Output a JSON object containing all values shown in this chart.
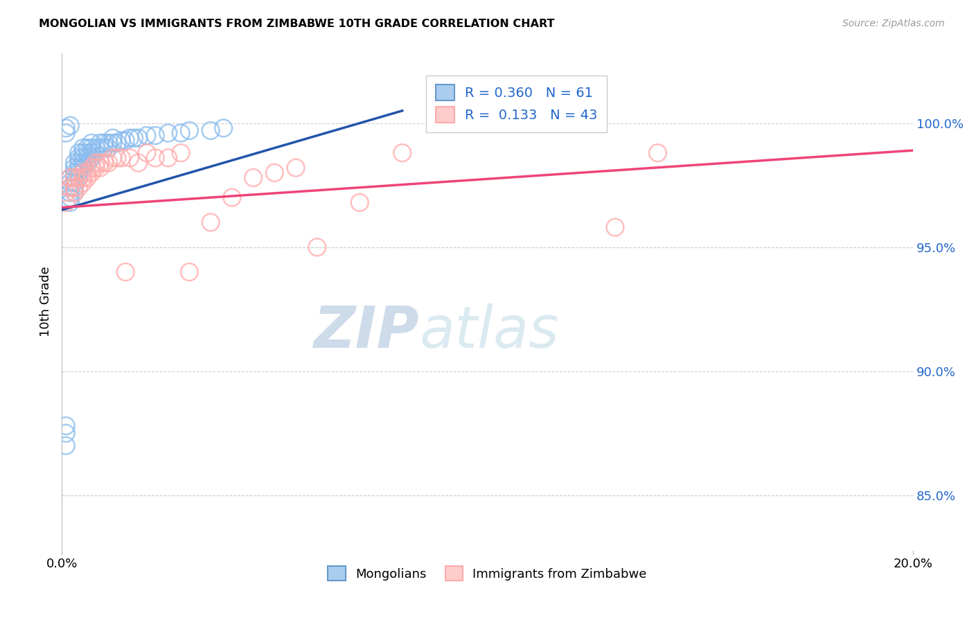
{
  "title": "MONGOLIAN VS IMMIGRANTS FROM ZIMBABWE 10TH GRADE CORRELATION CHART",
  "source": "Source: ZipAtlas.com",
  "ylabel": "10th Grade",
  "ylabel_right_labels": [
    "85.0%",
    "90.0%",
    "95.0%",
    "100.0%"
  ],
  "ylabel_right_values": [
    0.85,
    0.9,
    0.95,
    1.0
  ],
  "watermark_zip": "ZIP",
  "watermark_atlas": "atlas",
  "xmin": 0.0,
  "xmax": 0.2,
  "ymin": 0.828,
  "ymax": 1.028,
  "grid_color": "#cccccc",
  "background_color": "#ffffff",
  "line_blue_color": "#2255aa",
  "line_pink_color": "#ee4477",
  "mongolian_dot_color": "#88bbee",
  "zimbabwe_dot_color": "#ffaaaa",
  "legend_blue_face": "#aaccee",
  "legend_blue_edge": "#6699cc",
  "legend_pink_face": "#ffcccc",
  "legend_pink_edge": "#ffaaaa",
  "series_mongolian": {
    "points_x": [
      0.001,
      0.001,
      0.001,
      0.002,
      0.002,
      0.002,
      0.002,
      0.002,
      0.002,
      0.003,
      0.003,
      0.003,
      0.003,
      0.003,
      0.003,
      0.003,
      0.004,
      0.004,
      0.004,
      0.004,
      0.004,
      0.004,
      0.005,
      0.005,
      0.005,
      0.005,
      0.005,
      0.006,
      0.006,
      0.006,
      0.006,
      0.007,
      0.007,
      0.007,
      0.007,
      0.008,
      0.008,
      0.009,
      0.009,
      0.01,
      0.01,
      0.011,
      0.011,
      0.012,
      0.012,
      0.013,
      0.014,
      0.015,
      0.016,
      0.017,
      0.018,
      0.02,
      0.022,
      0.025,
      0.028,
      0.03,
      0.035,
      0.038,
      0.001,
      0.001,
      0.002
    ],
    "points_y": [
      0.87,
      0.875,
      0.878,
      0.968,
      0.97,
      0.972,
      0.974,
      0.976,
      0.978,
      0.972,
      0.974,
      0.976,
      0.978,
      0.98,
      0.982,
      0.984,
      0.978,
      0.98,
      0.982,
      0.984,
      0.986,
      0.988,
      0.982,
      0.984,
      0.986,
      0.988,
      0.99,
      0.984,
      0.986,
      0.988,
      0.99,
      0.986,
      0.988,
      0.99,
      0.992,
      0.988,
      0.99,
      0.99,
      0.992,
      0.99,
      0.992,
      0.99,
      0.992,
      0.992,
      0.994,
      0.992,
      0.993,
      0.993,
      0.994,
      0.994,
      0.994,
      0.995,
      0.995,
      0.996,
      0.996,
      0.997,
      0.997,
      0.998,
      0.996,
      0.998,
      0.999
    ]
  },
  "series_zimbabwe": {
    "points_x": [
      0.001,
      0.001,
      0.002,
      0.002,
      0.003,
      0.003,
      0.003,
      0.004,
      0.004,
      0.005,
      0.005,
      0.005,
      0.006,
      0.006,
      0.007,
      0.007,
      0.008,
      0.008,
      0.009,
      0.009,
      0.01,
      0.011,
      0.012,
      0.013,
      0.014,
      0.015,
      0.016,
      0.018,
      0.02,
      0.022,
      0.025,
      0.028,
      0.03,
      0.035,
      0.04,
      0.045,
      0.05,
      0.055,
      0.06,
      0.07,
      0.08,
      0.13,
      0.14
    ],
    "points_y": [
      0.968,
      0.972,
      0.974,
      0.978,
      0.972,
      0.974,
      0.978,
      0.974,
      0.978,
      0.976,
      0.978,
      0.98,
      0.978,
      0.98,
      0.98,
      0.982,
      0.982,
      0.984,
      0.982,
      0.984,
      0.984,
      0.984,
      0.986,
      0.986,
      0.986,
      0.94,
      0.986,
      0.984,
      0.988,
      0.986,
      0.986,
      0.988,
      0.94,
      0.96,
      0.97,
      0.978,
      0.98,
      0.982,
      0.95,
      0.968,
      0.988,
      0.958,
      0.988
    ]
  }
}
